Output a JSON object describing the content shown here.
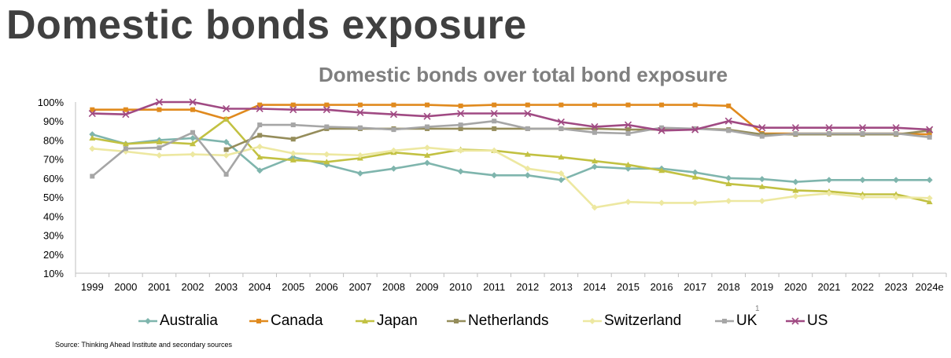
{
  "page": {
    "title": "Domestic bonds exposure",
    "source": "Source: Thinking Ahead Institute and secondary sources",
    "footnote_marker": "1"
  },
  "chart_data": {
    "type": "line",
    "title": "Domestic bonds over total bond exposure",
    "xlabel": "",
    "ylabel": "",
    "x": [
      "1999",
      "2000",
      "2001",
      "2002",
      "2003",
      "2004",
      "2005",
      "2006",
      "2007",
      "2008",
      "2009",
      "2010",
      "2011",
      "2012",
      "2013",
      "2014",
      "2015",
      "2016",
      "2017",
      "2018",
      "2019",
      "2020",
      "2021",
      "2022",
      "2023",
      "2024e"
    ],
    "ylim": [
      10,
      100
    ],
    "yticks": [
      "10%",
      "20%",
      "30%",
      "40%",
      "50%",
      "60%",
      "70%",
      "80%",
      "90%",
      "100%"
    ],
    "grid": false,
    "legend_position": "bottom",
    "series": [
      {
        "name": "Australia",
        "color": "#7fb5ad",
        "marker": "diamond",
        "values": [
          83,
          78,
          80,
          81,
          79,
          64,
          71,
          67,
          62.5,
          65,
          68,
          63.5,
          61.5,
          61.5,
          59,
          66,
          65,
          65,
          63,
          60,
          59.5,
          58,
          59,
          59,
          59,
          59
        ]
      },
      {
        "name": "Canada",
        "color": "#e08a1e",
        "marker": "square",
        "values": [
          96,
          96,
          96,
          96,
          91,
          98.5,
          98.5,
          98.5,
          98.5,
          98.5,
          98.5,
          98,
          98.5,
          98.5,
          98.5,
          98.5,
          98.5,
          98.5,
          98.5,
          98,
          83.5,
          83.5,
          83.5,
          83.5,
          83.5,
          83
        ]
      },
      {
        "name": "Japan",
        "color": "#c2c142",
        "marker": "triangle",
        "values": [
          81,
          78,
          79,
          78,
          91,
          71,
          69.5,
          68.5,
          70.5,
          73.5,
          72,
          75,
          74.5,
          72.5,
          71,
          69,
          67,
          64,
          60.5,
          57,
          55.5,
          53.5,
          53,
          51.5,
          51.5,
          47.5
        ]
      },
      {
        "name": "Netherlands",
        "color": "#958d5b",
        "marker": "square",
        "values": [
          null,
          null,
          null,
          null,
          75,
          82.5,
          80.5,
          86,
          86,
          86,
          86,
          86,
          86,
          86,
          86,
          86,
          85.5,
          85.5,
          86,
          85.5,
          83,
          83,
          83,
          83,
          83,
          85
        ]
      },
      {
        "name": "Switzerland",
        "color": "#ede8a1",
        "marker": "diamond",
        "values": [
          75.5,
          74,
          72,
          72.5,
          72,
          76.5,
          73,
          72.5,
          72,
          74.5,
          76,
          74.5,
          74.5,
          65,
          62.5,
          44.5,
          47.5,
          47,
          47,
          48,
          48,
          50.5,
          52,
          50,
          50,
          49.5
        ]
      },
      {
        "name": "UK",
        "color": "#a6a6a6",
        "marker": "square",
        "values": [
          61,
          75.5,
          76,
          84,
          62,
          88,
          88,
          87,
          86.5,
          85.5,
          87,
          88,
          90,
          86,
          86,
          84,
          83.5,
          86.5,
          86,
          85,
          82,
          83.5,
          83.5,
          83.5,
          83.5,
          81.5
        ]
      },
      {
        "name": "US",
        "color": "#a04a83",
        "marker": "x",
        "values": [
          94,
          93.5,
          100,
          100,
          96.5,
          96.5,
          96,
          96,
          94.5,
          93.5,
          92.5,
          94,
          94,
          94,
          89.5,
          87,
          88,
          85,
          85.5,
          90,
          86.5,
          86.5,
          86.5,
          86.5,
          86.5,
          85.5
        ]
      }
    ]
  }
}
